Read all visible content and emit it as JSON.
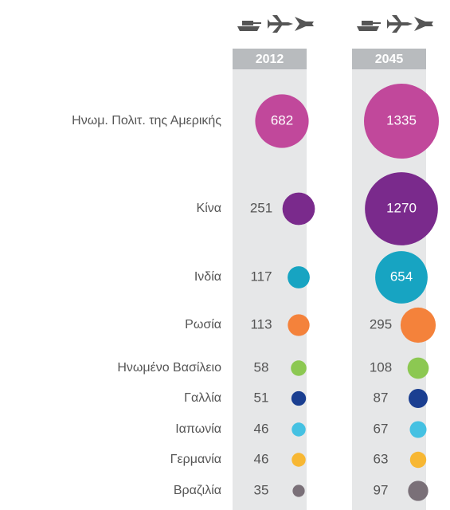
{
  "chart_data": {
    "type": "bubble",
    "categories": [
      "Ηνωμ. Πολιτ. της Αμερικής",
      "Κίνα",
      "Ινδία",
      "Ρωσία",
      "Ηνωμένο Βασίλειο",
      "Γαλλία",
      "Ιαπωνία",
      "Γερμανία",
      "Βραζιλία"
    ],
    "colors": [
      "#c1489b",
      "#7a2a8c",
      "#17a4c2",
      "#f4823b",
      "#8cc852",
      "#1b3f91",
      "#45c1e2",
      "#f7b733",
      "#7a7078"
    ],
    "series": [
      {
        "name": "2012",
        "values": [
          682,
          251,
          117,
          113,
          58,
          51,
          46,
          46,
          35
        ]
      },
      {
        "name": "2045",
        "values": [
          1335,
          1270,
          654,
          295,
          108,
          87,
          67,
          63,
          97
        ]
      }
    ]
  }
}
